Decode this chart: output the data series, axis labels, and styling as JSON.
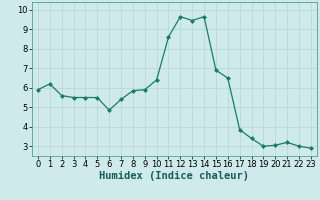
{
  "title": "",
  "xlabel": "Humidex (Indice chaleur)",
  "x": [
    0,
    1,
    2,
    3,
    4,
    5,
    6,
    7,
    8,
    9,
    10,
    11,
    12,
    13,
    14,
    15,
    16,
    17,
    18,
    19,
    20,
    21,
    22,
    23
  ],
  "y": [
    5.9,
    6.2,
    5.6,
    5.5,
    5.5,
    5.5,
    4.85,
    5.4,
    5.85,
    5.9,
    6.4,
    8.6,
    9.65,
    9.45,
    9.65,
    6.9,
    6.5,
    3.85,
    3.4,
    3.0,
    3.05,
    3.2,
    3.0,
    2.9
  ],
  "line_color": "#1a7a6e",
  "marker": "D",
  "marker_size": 2.0,
  "bg_color": "#ceeaea",
  "grid_color": "#b8d4d4",
  "ylim": [
    2.5,
    10.4
  ],
  "xlim": [
    -0.5,
    23.5
  ],
  "yticks": [
    3,
    4,
    5,
    6,
    7,
    8,
    9,
    10
  ],
  "xticks": [
    0,
    1,
    2,
    3,
    4,
    5,
    6,
    7,
    8,
    9,
    10,
    11,
    12,
    13,
    14,
    15,
    16,
    17,
    18,
    19,
    20,
    21,
    22,
    23
  ],
  "tick_fontsize": 6.0,
  "xlabel_fontsize": 7.5,
  "lw": 0.9
}
